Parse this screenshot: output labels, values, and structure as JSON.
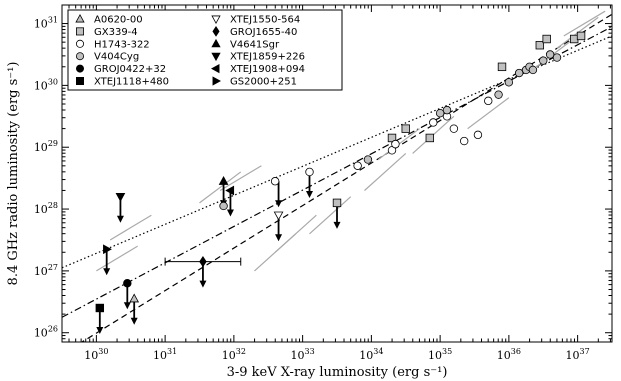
{
  "chart_data": {
    "type": "scatter",
    "xlabel": "3-9 keV X-ray luminosity (erg s⁻¹)",
    "ylabel": "8.4 GHz radio luminosity (erg s⁻¹)",
    "xscale": "log",
    "yscale": "log",
    "xlim_log10": [
      29.5,
      37.5
    ],
    "ylim_log10": [
      25.85,
      31.3
    ],
    "xticks": [
      {
        "exp": 30,
        "label": "10",
        "sup": "30"
      },
      {
        "exp": 31,
        "label": "10",
        "sup": "31"
      },
      {
        "exp": 32,
        "label": "10",
        "sup": "32"
      },
      {
        "exp": 33,
        "label": "10",
        "sup": "33"
      },
      {
        "exp": 34,
        "label": "10",
        "sup": "34"
      },
      {
        "exp": 35,
        "label": "10",
        "sup": "35"
      },
      {
        "exp": 36,
        "label": "10",
        "sup": "36"
      },
      {
        "exp": 37,
        "label": "10",
        "sup": "37"
      }
    ],
    "yticks": [
      {
        "exp": 26,
        "label": "10",
        "sup": "26"
      },
      {
        "exp": 27,
        "label": "10",
        "sup": "27"
      },
      {
        "exp": 28,
        "label": "10",
        "sup": "28"
      },
      {
        "exp": 29,
        "label": "10",
        "sup": "29"
      },
      {
        "exp": 30,
        "label": "10",
        "sup": "30"
      },
      {
        "exp": 31,
        "label": "10",
        "sup": "31"
      }
    ],
    "grid": false,
    "legend": {
      "placement": "top-left",
      "columns": [
        [
          {
            "name": "A0620-00",
            "marker": "triangle-up",
            "fill": "#c0c0c0"
          },
          {
            "name": "GX339-4",
            "marker": "square",
            "fill": "#c0c0c0"
          },
          {
            "name": "H1743-322",
            "marker": "circle",
            "fill": "#ffffff"
          },
          {
            "name": "V404Cyg",
            "marker": "circle",
            "fill": "#c0c0c0"
          },
          {
            "name": "GROJ0422+32",
            "marker": "circle",
            "fill": "#000000"
          },
          {
            "name": "XTEJ1118+480",
            "marker": "square",
            "fill": "#000000"
          }
        ],
        [
          {
            "name": "XTEJ1550-564",
            "marker": "triangle-down",
            "fill": "#ffffff"
          },
          {
            "name": "GROJ1655-40",
            "marker": "diamond",
            "fill": "#000000"
          },
          {
            "name": "V4641Sgr",
            "marker": "triangle-up",
            "fill": "#000000"
          },
          {
            "name": "XTEJ1859+226",
            "marker": "triangle-down",
            "fill": "#000000"
          },
          {
            "name": "XTEJ1908+094",
            "marker": "triangle-left",
            "fill": "#000000"
          },
          {
            "name": "GS2000+251",
            "marker": "triangle-right",
            "fill": "#000000"
          }
        ]
      ]
    },
    "fit_lines": [
      {
        "style": "dashed",
        "points_log10": [
          [
            29.5,
            25.65
          ],
          [
            37.5,
            31.15
          ]
        ]
      },
      {
        "style": "dotted",
        "points_log10": [
          [
            29.5,
            27.05
          ],
          [
            37.5,
            30.8
          ]
        ]
      },
      {
        "style": "dashdot",
        "points_log10": [
          [
            29.5,
            26.25
          ],
          [
            37.5,
            30.95
          ]
        ]
      }
    ],
    "series": [
      {
        "name": "A0620-00",
        "marker": "triangle-up",
        "fill": "#c0c0c0",
        "points_log10": [
          [
            30.55,
            26.55
          ]
        ]
      },
      {
        "name": "GX339-4",
        "marker": "square",
        "fill": "#c0c0c0",
        "points_log10": [
          [
            34.3,
            29.15
          ],
          [
            34.5,
            29.3
          ],
          [
            34.85,
            29.15
          ],
          [
            35.9,
            30.3
          ],
          [
            36.45,
            30.65
          ],
          [
            36.55,
            30.75
          ],
          [
            36.95,
            30.75
          ],
          [
            37.05,
            30.8
          ]
        ]
      },
      {
        "name": "H1743-322",
        "marker": "circle",
        "fill": "#ffffff",
        "points_log10": [
          [
            32.6,
            28.45
          ],
          [
            33.1,
            28.6
          ],
          [
            33.8,
            28.7
          ],
          [
            34.3,
            28.95
          ],
          [
            34.35,
            29.05
          ],
          [
            34.9,
            29.4
          ],
          [
            35.1,
            29.5
          ],
          [
            35.2,
            29.3
          ],
          [
            35.35,
            29.1
          ],
          [
            35.55,
            29.2
          ],
          [
            35.7,
            29.75
          ]
        ]
      },
      {
        "name": "V404Cyg",
        "marker": "circle",
        "fill": "#c0c0c0",
        "points_log10": [
          [
            31.85,
            28.05
          ],
          [
            33.95,
            28.8
          ],
          [
            35.0,
            29.55
          ],
          [
            35.1,
            29.6
          ],
          [
            35.85,
            29.85
          ],
          [
            36.0,
            30.05
          ],
          [
            36.15,
            30.2
          ],
          [
            36.25,
            30.25
          ],
          [
            36.3,
            30.3
          ],
          [
            36.35,
            30.25
          ],
          [
            36.5,
            30.4
          ],
          [
            36.6,
            30.5
          ],
          [
            36.7,
            30.45
          ]
        ]
      },
      {
        "name": "GROJ0422+32",
        "marker": "circle",
        "fill": "#000000",
        "points_log10": [
          [
            30.45,
            26.8
          ]
        ]
      },
      {
        "name": "XTEJ1118+480",
        "marker": "square",
        "fill": "#000000",
        "points_log10": [
          [
            30.05,
            26.4
          ]
        ]
      },
      {
        "name": "XTEJ1550-564",
        "marker": "triangle-down",
        "fill": "#ffffff",
        "points_log10": [
          [
            32.65,
            27.9
          ]
        ]
      },
      {
        "name": "GROJ1655-40",
        "marker": "diamond",
        "fill": "#000000",
        "points_log10": [
          [
            31.55,
            27.15
          ]
        ]
      },
      {
        "name": "V4641Sgr",
        "marker": "triangle-up",
        "fill": "#000000",
        "points_log10": [
          [
            31.85,
            28.45
          ]
        ]
      },
      {
        "name": "XTEJ1859+226",
        "marker": "triangle-down",
        "fill": "#000000",
        "points_log10": [
          [
            30.35,
            28.2
          ]
        ]
      },
      {
        "name": "XTEJ1908+094",
        "marker": "triangle-left",
        "fill": "#000000",
        "points_log10": [
          [
            31.95,
            28.3
          ]
        ]
      },
      {
        "name": "GS2000+251",
        "marker": "triangle-right",
        "fill": "#000000",
        "points_log10": [
          [
            30.15,
            27.35
          ]
        ]
      }
    ],
    "upper_limits_log10": [
      [
        30.05,
        26.4
      ],
      [
        30.35,
        28.2
      ],
      [
        30.15,
        27.35
      ],
      [
        30.55,
        26.55
      ],
      [
        30.45,
        26.8
      ],
      [
        31.55,
        27.15
      ],
      [
        31.85,
        28.45
      ],
      [
        31.95,
        28.3
      ],
      [
        32.65,
        27.9
      ],
      [
        32.65,
        28.45
      ],
      [
        33.1,
        28.6
      ],
      [
        33.5,
        28.1
      ]
    ],
    "upper_limit_markers": [
      {
        "name": "GX339-4",
        "marker": "square",
        "fill": "#c0c0c0",
        "point_log10": [
          33.5,
          28.1
        ]
      }
    ],
    "error_bars": [
      {
        "center_log10": [
          31.55,
          27.15
        ],
        "xrange_log10": [
          31.0,
          32.1
        ]
      }
    ],
    "diagonal_segments_log10": [
      [
        [
          30.0,
          27.0
        ],
        [
          30.6,
          27.4
        ]
      ],
      [
        [
          30.2,
          27.5
        ],
        [
          30.8,
          27.9
        ]
      ],
      [
        [
          31.5,
          28.1
        ],
        [
          32.1,
          28.6
        ]
      ],
      [
        [
          31.8,
          28.3
        ],
        [
          32.4,
          28.7
        ]
      ],
      [
        [
          33.9,
          28.3
        ],
        [
          34.5,
          28.9
        ]
      ],
      [
        [
          34.1,
          28.8
        ],
        [
          34.7,
          29.3
        ]
      ],
      [
        [
          34.6,
          28.9
        ],
        [
          35.2,
          29.5
        ]
      ],
      [
        [
          35.4,
          29.3
        ],
        [
          36.0,
          29.8
        ]
      ],
      [
        [
          36.4,
          30.3
        ],
        [
          37.0,
          30.8
        ]
      ],
      [
        [
          36.7,
          30.6
        ],
        [
          37.3,
          31.1
        ]
      ],
      [
        [
          32.3,
          27.0
        ],
        [
          32.9,
          27.6
        ]
      ],
      [
        [
          32.6,
          27.3
        ],
        [
          33.2,
          27.9
        ]
      ],
      [
        [
          33.1,
          27.6
        ],
        [
          33.7,
          28.2
        ]
      ],
      [
        [
          36.8,
          30.8
        ],
        [
          37.4,
          31.2
        ]
      ]
    ]
  }
}
